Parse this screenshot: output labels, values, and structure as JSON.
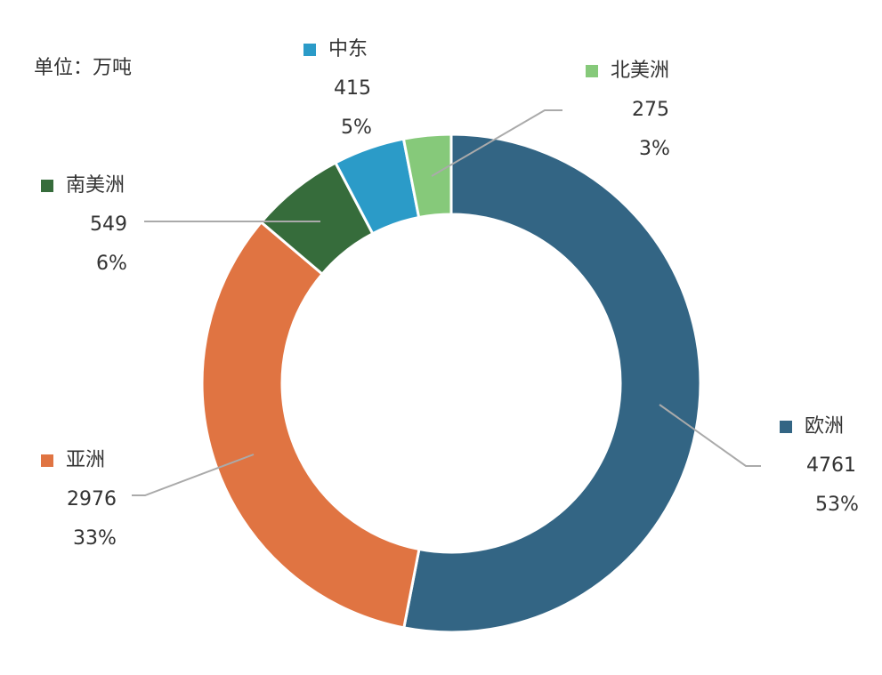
{
  "unit_label": "单位：万吨",
  "chart_data": {
    "type": "pie",
    "variant": "donut",
    "legend_placement": "labels around ring with leader lines",
    "series": [
      {
        "name": "欧洲",
        "value": 4761,
        "percent_label": "53%",
        "color": "#336584"
      },
      {
        "name": "亚洲",
        "value": 2976,
        "percent_label": "33%",
        "color": "#E07442"
      },
      {
        "name": "南美洲",
        "value": 549,
        "percent_label": "6%",
        "color": "#366C3B"
      },
      {
        "name": "中东",
        "value": 415,
        "percent_label": "5%",
        "color": "#2B9BC8"
      },
      {
        "name": "北美洲",
        "value": 275,
        "percent_label": "3%",
        "color": "#86C97A"
      }
    ],
    "leader_line_color": "#AAAAAA"
  }
}
